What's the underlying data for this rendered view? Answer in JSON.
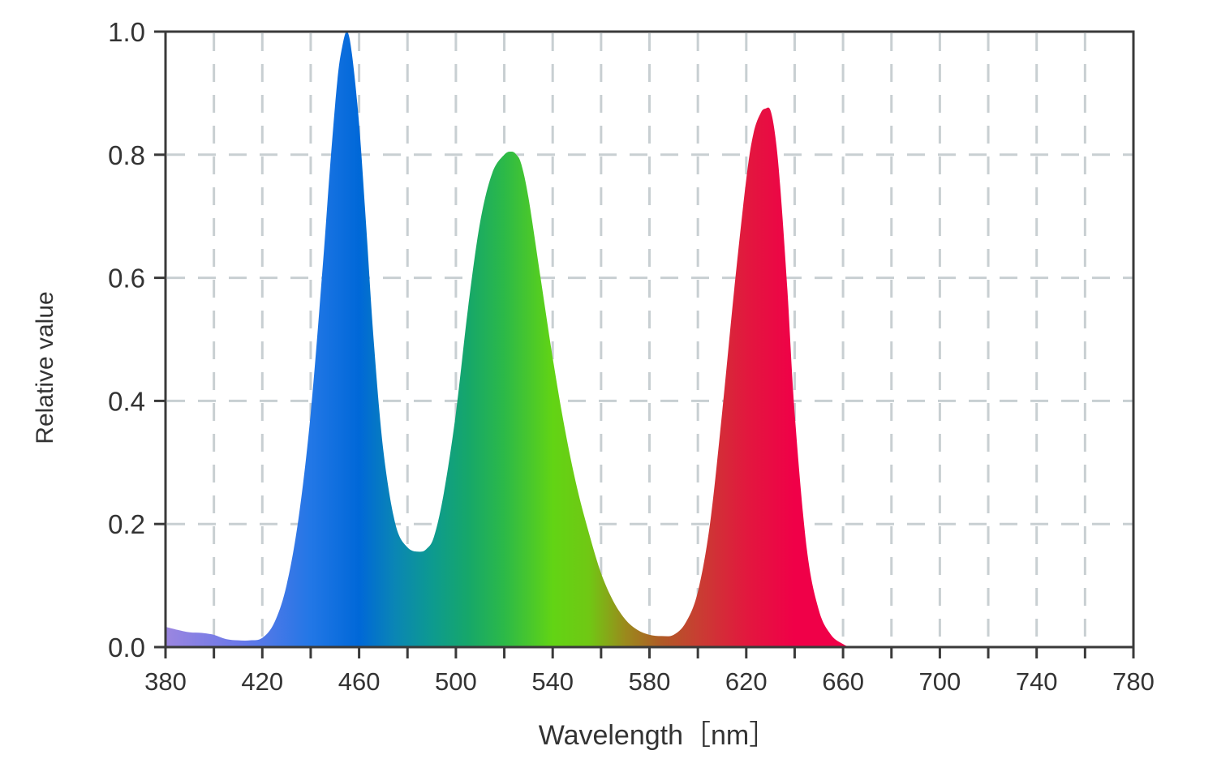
{
  "chart_data": {
    "type": "area",
    "title": "",
    "xlabel": "Wavelength［nm］",
    "ylabel": "Relative value",
    "xlim": [
      380,
      780
    ],
    "ylim": [
      0,
      1.0
    ],
    "x_ticks": [
      380,
      420,
      460,
      500,
      540,
      580,
      620,
      660,
      700,
      740,
      780
    ],
    "x_tick_labels": [
      "380",
      "420",
      "460",
      "500",
      "540",
      "580",
      "620",
      "660",
      "700",
      "740",
      "780"
    ],
    "y_ticks": [
      0.0,
      0.2,
      0.4,
      0.6,
      0.8,
      1.0
    ],
    "y_tick_labels": [
      "0.0",
      "0.2",
      "0.4",
      "0.6",
      "0.8",
      "1.0"
    ],
    "grid": true,
    "grid_style": "dashed",
    "fill": "spectral gradient",
    "series": [
      {
        "x": [
          380,
          385,
          390,
          395,
          400,
          405,
          410,
          415,
          420,
          425,
          430,
          435,
          440,
          445,
          448,
          451,
          453,
          455,
          457,
          460,
          463,
          466,
          470,
          475,
          480,
          485,
          488,
          491,
          495,
          500,
          505,
          510,
          515,
          520,
          523,
          525,
          527,
          530,
          535,
          540,
          545,
          550,
          555,
          560,
          565,
          570,
          575,
          580,
          585,
          590,
          595,
          600,
          605,
          610,
          615,
          620,
          623,
          626,
          628,
          630,
          632,
          634,
          637,
          640,
          645,
          650,
          655,
          660,
          663,
          665,
          670,
          700,
          740,
          780
        ],
        "y": [
          0.033,
          0.028,
          0.024,
          0.023,
          0.02,
          0.013,
          0.011,
          0.011,
          0.015,
          0.04,
          0.1,
          0.21,
          0.38,
          0.62,
          0.78,
          0.92,
          0.975,
          1.0,
          0.965,
          0.85,
          0.68,
          0.5,
          0.32,
          0.2,
          0.162,
          0.155,
          0.16,
          0.18,
          0.25,
          0.38,
          0.55,
          0.69,
          0.77,
          0.8,
          0.805,
          0.8,
          0.785,
          0.73,
          0.6,
          0.47,
          0.355,
          0.26,
          0.185,
          0.12,
          0.075,
          0.045,
          0.028,
          0.02,
          0.018,
          0.02,
          0.04,
          0.09,
          0.2,
          0.38,
          0.58,
          0.76,
          0.835,
          0.868,
          0.875,
          0.872,
          0.83,
          0.75,
          0.58,
          0.38,
          0.16,
          0.06,
          0.02,
          0.005,
          0.0,
          0.0,
          0.0,
          0.0,
          0.0,
          0.0
        ]
      }
    ]
  },
  "colors": {
    "axis": "#3a3a3a",
    "grid": "#c8cfd2",
    "text": "#333333",
    "gradient": [
      {
        "at": 380,
        "color": "#9b86e0"
      },
      {
        "at": 410,
        "color": "#6a78e8"
      },
      {
        "at": 440,
        "color": "#2277e6"
      },
      {
        "at": 460,
        "color": "#0068d8"
      },
      {
        "at": 475,
        "color": "#0a86b4"
      },
      {
        "at": 490,
        "color": "#0d9a90"
      },
      {
        "at": 505,
        "color": "#16a76a"
      },
      {
        "at": 520,
        "color": "#2cb948"
      },
      {
        "at": 540,
        "color": "#62d414"
      },
      {
        "at": 555,
        "color": "#70c814"
      },
      {
        "at": 570,
        "color": "#9a8a1c"
      },
      {
        "at": 585,
        "color": "#b05a26"
      },
      {
        "at": 600,
        "color": "#c83e32"
      },
      {
        "at": 620,
        "color": "#e2183e"
      },
      {
        "at": 640,
        "color": "#f00048"
      },
      {
        "at": 665,
        "color": "#f00048"
      }
    ]
  }
}
